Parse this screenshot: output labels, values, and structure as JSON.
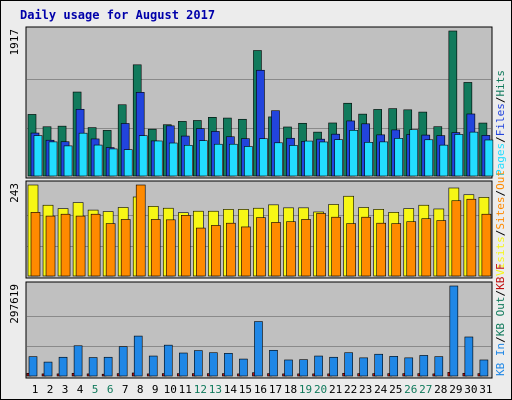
{
  "title": "Daily usage for August 2017",
  "colors": {
    "frame_bg": "#ececec",
    "panel_bg": "#c0c0c0",
    "panel_border": "#000000",
    "hits": "#117a5c",
    "files": "#2244dd",
    "pages": "#22ddff",
    "visits": "#f7f715",
    "sites": "#ff8a00",
    "kb_in": "#1f87e6",
    "kb_out": "#117a5c",
    "kb_f": "#c01010",
    "weekday_label": "#000000",
    "weekend_label": "#117a5c"
  },
  "chart_data": [
    {
      "type": "bar",
      "name": "hits-files-pages",
      "categories": [
        "1",
        "2",
        "3",
        "4",
        "5",
        "6",
        "7",
        "8",
        "9",
        "10",
        "11",
        "12",
        "13",
        "14",
        "15",
        "16",
        "17",
        "18",
        "19",
        "20",
        "21",
        "22",
        "23",
        "24",
        "25",
        "26",
        "27",
        "28",
        "29",
        "30",
        "31"
      ],
      "weekend_days": [
        "5",
        "6",
        "12",
        "13",
        "19",
        "20",
        "26",
        "27"
      ],
      "max_label": "1917",
      "ymax": 1917,
      "legend": [
        {
          "text": "Pages",
          "color": "#22ddff"
        },
        {
          "text": "Files",
          "color": "#2244dd"
        },
        {
          "text": "Hits",
          "color": "#117a5c"
        }
      ],
      "series": [
        {
          "name": "Hits",
          "color": "#117a5c",
          "values": [
            814,
            651,
            659,
            1110,
            640,
            603,
            942,
            1470,
            619,
            678,
            722,
            734,
            776,
            766,
            750,
            1659,
            781,
            648,
            697,
            580,
            701,
            962,
            818,
            880,
            891,
            875,
            845,
            652,
            1917,
            1237,
            700
          ]
        },
        {
          "name": "Files",
          "color": "#2244dd",
          "values": [
            568,
            473,
            453,
            882,
            490,
            376,
            694,
            1106,
            464,
            663,
            528,
            626,
            589,
            519,
            494,
            1398,
            863,
            499,
            458,
            487,
            553,
            728,
            690,
            544,
            609,
            549,
            541,
            534,
            574,
            820,
            537
          ]
        },
        {
          "name": "Pages",
          "color": "#22ddff",
          "values": [
            534,
            451,
            398,
            566,
            409,
            358,
            348,
            533,
            463,
            436,
            406,
            467,
            420,
            420,
            390,
            493,
            439,
            404,
            462,
            450,
            480,
            604,
            445,
            451,
            497,
            613,
            479,
            408,
            549,
            580,
            476
          ]
        }
      ]
    },
    {
      "type": "bar",
      "name": "visits-sites",
      "categories": [
        "1",
        "2",
        "3",
        "4",
        "5",
        "6",
        "7",
        "8",
        "9",
        "10",
        "11",
        "12",
        "13",
        "14",
        "15",
        "16",
        "17",
        "18",
        "19",
        "20",
        "21",
        "22",
        "23",
        "24",
        "25",
        "26",
        "27",
        "28",
        "29",
        "30",
        "31"
      ],
      "max_label": "243",
      "ymax": 243,
      "legend": [
        {
          "text": "Visits",
          "color": "#f7f715"
        },
        {
          "text": "Sites",
          "color": "#ff8a00"
        },
        {
          "text": "Out",
          "color": "#ff8a00"
        }
      ],
      "series": [
        {
          "name": "Visits",
          "color": "#f7f715",
          "values": [
            243,
            189,
            180,
            196,
            176,
            172,
            183,
            211,
            186,
            181,
            169,
            173,
            173,
            178,
            178,
            181,
            190,
            182,
            182,
            171,
            191,
            213,
            183,
            178,
            170,
            180,
            189,
            179,
            235,
            217,
            210
          ]
        },
        {
          "name": "Sites",
          "color": "#ff8a00",
          "values": [
            170,
            160,
            165,
            160,
            165,
            140,
            151,
            243,
            151,
            150,
            162,
            128,
            135,
            141,
            131,
            156,
            143,
            145,
            151,
            167,
            157,
            140,
            157,
            141,
            140,
            145,
            153,
            148,
            201,
            205,
            165
          ]
        }
      ]
    },
    {
      "type": "bar",
      "name": "kb-in-out",
      "categories": [
        "1",
        "2",
        "3",
        "4",
        "5",
        "6",
        "7",
        "8",
        "9",
        "10",
        "11",
        "12",
        "13",
        "14",
        "15",
        "16",
        "17",
        "18",
        "19",
        "20",
        "21",
        "22",
        "23",
        "24",
        "25",
        "26",
        "27",
        "28",
        "29",
        "30",
        "31"
      ],
      "max_label": "297619",
      "ymax": 297619,
      "legend": [
        {
          "text": "KB In",
          "color": "#1f87e6"
        },
        {
          "text": "KB Out",
          "color": "#117a5c"
        },
        {
          "text": "KB F",
          "color": "#c01010"
        }
      ],
      "series": [
        {
          "name": "KB In",
          "color": "#1f87e6",
          "values": [
            64000,
            46000,
            62000,
            100000,
            61000,
            62000,
            97000,
            132000,
            66000,
            102000,
            76000,
            84000,
            77000,
            75000,
            56000,
            180000,
            85000,
            53000,
            54000,
            66000,
            62000,
            77000,
            60000,
            72000,
            65000,
            60000,
            68000,
            64000,
            297619,
            129000,
            53000
          ]
        },
        {
          "name": "KB F",
          "color": "#c01010",
          "values": [
            9000,
            7000,
            7000,
            9000,
            7000,
            6000,
            8000,
            10000,
            7000,
            8000,
            8000,
            8000,
            8000,
            8000,
            7000,
            11000,
            8000,
            7000,
            7000,
            7000,
            7000,
            9000,
            8000,
            8000,
            8000,
            8000,
            8000,
            7000,
            12000,
            9000,
            8000
          ]
        }
      ]
    }
  ]
}
